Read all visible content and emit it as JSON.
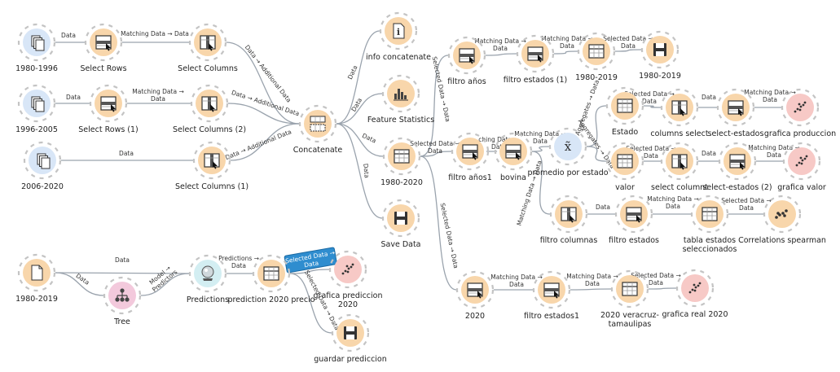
{
  "colors": {
    "data_node": "#f8d6ab",
    "file_node": "#d8e6f7",
    "save_node": "#f8d6ab",
    "viz_node": "#f7c9c6",
    "model_node": "#f3c9dc",
    "predict_node": "#d3eef2",
    "link": "#9aa3ad",
    "selected_link_label": "#2f8dcf"
  },
  "nodes": [
    {
      "id": "n_1980_1996",
      "label": "1980-1996",
      "icon": "files-icon",
      "kind": "file"
    },
    {
      "id": "n_select_rows",
      "label": "Select Rows",
      "icon": "select-rows-icon",
      "kind": "data"
    },
    {
      "id": "n_select_columns",
      "label": "Select Columns",
      "icon": "select-columns-icon",
      "kind": "data"
    },
    {
      "id": "n_1996_2005",
      "label": "1996-2005",
      "icon": "files-icon",
      "kind": "file"
    },
    {
      "id": "n_select_rows_1",
      "label": "Select Rows (1)",
      "icon": "select-rows-icon",
      "kind": "data"
    },
    {
      "id": "n_select_columns_2",
      "label": "Select Columns (2)",
      "icon": "select-columns-icon",
      "kind": "data"
    },
    {
      "id": "n_2006_2020",
      "label": "2006-2020",
      "icon": "files-icon",
      "kind": "file"
    },
    {
      "id": "n_select_columns_1",
      "label": "Select Columns (1)",
      "icon": "select-columns-icon",
      "kind": "data"
    },
    {
      "id": "n_concatenate",
      "label": "Concatenate",
      "icon": "concatenate-icon",
      "kind": "data"
    },
    {
      "id": "n_info_concatenate",
      "label": "info concatenate",
      "icon": "info-icon",
      "kind": "data"
    },
    {
      "id": "n_feature_statistics",
      "label": "Feature Statistics",
      "icon": "bar-stats-icon",
      "kind": "data"
    },
    {
      "id": "n_1980_2020",
      "label": "1980-2020",
      "icon": "table-icon",
      "kind": "data"
    },
    {
      "id": "n_save_data",
      "label": "Save Data",
      "icon": "save-icon",
      "kind": "data"
    },
    {
      "id": "n_filtro_anos",
      "label": "filtro años",
      "icon": "select-rows-icon",
      "kind": "data"
    },
    {
      "id": "n_filtro_estados_1",
      "label": "filtro estados (1)",
      "icon": "select-rows-icon",
      "kind": "data"
    },
    {
      "id": "n_1980_2019_tbl",
      "label": "1980-2019",
      "icon": "table-icon",
      "kind": "data"
    },
    {
      "id": "n_1980_2019_save",
      "label": "1980-2019",
      "icon": "save-icon",
      "kind": "data"
    },
    {
      "id": "n_filtro_anos1",
      "label": "filtro años1",
      "icon": "select-rows-icon",
      "kind": "data"
    },
    {
      "id": "n_bovina",
      "label": "bovina",
      "icon": "select-rows-icon",
      "kind": "data"
    },
    {
      "id": "n_promedio",
      "label": "promedio por estado",
      "icon": "group-by-icon",
      "kind": "aggregate"
    },
    {
      "id": "n_estado",
      "label": "Estado",
      "icon": "table-icon",
      "kind": "data"
    },
    {
      "id": "n_columns_select",
      "label": "columns select",
      "icon": "select-columns-icon",
      "kind": "data"
    },
    {
      "id": "n_select_estados",
      "label": "select-estados",
      "icon": "select-rows-icon",
      "kind": "data"
    },
    {
      "id": "n_grafica_produccion",
      "label": "grafica produccion",
      "icon": "scatter-plot-icon",
      "kind": "viz"
    },
    {
      "id": "n_valor",
      "label": "valor",
      "icon": "table-icon",
      "kind": "data"
    },
    {
      "id": "n_select_columnt",
      "label": "select columnt",
      "icon": "select-columns-icon",
      "kind": "data"
    },
    {
      "id": "n_select_estados_2",
      "label": "select-estados (2)",
      "icon": "select-rows-icon",
      "kind": "data"
    },
    {
      "id": "n_grafica_valor",
      "label": "grafica valor",
      "icon": "scatter-plot-icon",
      "kind": "viz"
    },
    {
      "id": "n_filtro_columnas",
      "label": "filtro columnas",
      "icon": "select-columns-icon",
      "kind": "data"
    },
    {
      "id": "n_filtro_estados",
      "label": "filtro estados",
      "icon": "select-rows-icon",
      "kind": "data"
    },
    {
      "id": "n_tabla_estados",
      "label": "tabla estados\nseleccionados",
      "icon": "table-icon",
      "kind": "data"
    },
    {
      "id": "n_correlations",
      "label": "Correlations spearman",
      "icon": "correlations-icon",
      "kind": "data"
    },
    {
      "id": "n_2020",
      "label": "2020",
      "icon": "select-rows-icon",
      "kind": "data"
    },
    {
      "id": "n_filtro_estados1",
      "label": "filtro estados1",
      "icon": "select-rows-icon",
      "kind": "data"
    },
    {
      "id": "n_2020_veracruz",
      "label": "2020 veracruz-\ntamaulipas",
      "icon": "table-icon",
      "kind": "data"
    },
    {
      "id": "n_grafica_real_2020",
      "label": "grafica real 2020",
      "icon": "scatter-plot-icon",
      "kind": "viz"
    },
    {
      "id": "n_1980_2019_file",
      "label": "1980-2019",
      "icon": "file-icon",
      "kind": "data"
    },
    {
      "id": "n_tree",
      "label": "Tree",
      "icon": "tree-icon",
      "kind": "model"
    },
    {
      "id": "n_predictions",
      "label": "Predictions",
      "icon": "predictions-icon",
      "kind": "predict"
    },
    {
      "id": "n_prediction_2020",
      "label": "prediction 2020 precio",
      "icon": "table-icon",
      "kind": "data"
    },
    {
      "id": "n_grafica_prediccion",
      "label": "grafica prediccion\n2020",
      "icon": "scatter-plot-icon",
      "kind": "viz"
    },
    {
      "id": "n_guardar_prediccion",
      "label": "guardar prediccion",
      "icon": "save-icon",
      "kind": "data"
    }
  ],
  "links": [
    {
      "from": "n_1980_1996",
      "to": "n_select_rows",
      "label": "Data"
    },
    {
      "from": "n_select_rows",
      "to": "n_select_columns",
      "label": "Matching Data → Data"
    },
    {
      "from": "n_select_columns",
      "to": "n_concatenate",
      "label": "Data → Additional Data"
    },
    {
      "from": "n_1996_2005",
      "to": "n_select_rows_1",
      "label": "Data"
    },
    {
      "from": "n_select_rows_1",
      "to": "n_select_columns_2",
      "label": "Matching Data →\nData"
    },
    {
      "from": "n_select_columns_2",
      "to": "n_concatenate",
      "label": "Data → Additional Data"
    },
    {
      "from": "n_2006_2020",
      "to": "n_select_columns_1",
      "label": "Data"
    },
    {
      "from": "n_select_columns_1",
      "to": "n_concatenate",
      "label": "Data → Additional Data"
    },
    {
      "from": "n_concatenate",
      "to": "n_info_concatenate",
      "label": "Data"
    },
    {
      "from": "n_concatenate",
      "to": "n_feature_statistics",
      "label": "Data"
    },
    {
      "from": "n_concatenate",
      "to": "n_1980_2020",
      "label": "Data"
    },
    {
      "from": "n_concatenate",
      "to": "n_save_data",
      "label": "Data"
    },
    {
      "from": "n_1980_2020",
      "to": "n_filtro_anos",
      "label": "Selected Data → Data"
    },
    {
      "from": "n_filtro_anos",
      "to": "n_filtro_estados_1",
      "label": "Matching Data →\nData"
    },
    {
      "from": "n_filtro_estados_1",
      "to": "n_1980_2019_tbl",
      "label": "Matching Data →\nData"
    },
    {
      "from": "n_1980_2019_tbl",
      "to": "n_1980_2019_save",
      "label": "Selected Data →\nData"
    },
    {
      "from": "n_1980_2020",
      "to": "n_filtro_anos1",
      "label": "Selected Data →\nData"
    },
    {
      "from": "n_filtro_anos1",
      "to": "n_bovina",
      "label": "ching Data →\nData"
    },
    {
      "from": "n_bovina",
      "to": "n_promedio",
      "label": "Matching Data →\nData"
    },
    {
      "from": "n_promedio",
      "to": "n_estado",
      "label": "Aggregates → Data"
    },
    {
      "from": "n_estado",
      "to": "n_columns_select",
      "label": "Selected Data →\nData"
    },
    {
      "from": "n_columns_select",
      "to": "n_select_estados",
      "label": "Data"
    },
    {
      "from": "n_select_estados",
      "to": "n_grafica_produccion",
      "label": "Matching Data →\nData"
    },
    {
      "from": "n_promedio",
      "to": "n_valor",
      "label": "Aggregates → Data"
    },
    {
      "from": "n_valor",
      "to": "n_select_columnt",
      "label": "Selected Data →\nData"
    },
    {
      "from": "n_select_columnt",
      "to": "n_select_estados_2",
      "label": "Data"
    },
    {
      "from": "n_select_estados_2",
      "to": "n_grafica_valor",
      "label": "Matching Data →\nData"
    },
    {
      "from": "n_bovina",
      "to": "n_filtro_columnas",
      "label": "Matching Data → Data"
    },
    {
      "from": "n_filtro_columnas",
      "to": "n_filtro_estados",
      "label": "Data"
    },
    {
      "from": "n_filtro_estados",
      "to": "n_tabla_estados",
      "label": "Matching Data →\nData"
    },
    {
      "from": "n_tabla_estados",
      "to": "n_correlations",
      "label": "Selected Data →\nData"
    },
    {
      "from": "n_1980_2020",
      "to": "n_2020",
      "label": "Selected Data → Data"
    },
    {
      "from": "n_2020",
      "to": "n_filtro_estados1",
      "label": "Matching Data →\nData"
    },
    {
      "from": "n_filtro_estados1",
      "to": "n_2020_veracruz",
      "label": "Matching Data →\nData"
    },
    {
      "from": "n_2020_veracruz",
      "to": "n_grafica_real_2020",
      "label": "Selected Data →\nData"
    },
    {
      "from": "n_1980_2019_file",
      "to": "n_predictions",
      "label": "Data"
    },
    {
      "from": "n_1980_2019_file",
      "to": "n_tree",
      "label": "Data"
    },
    {
      "from": "n_tree",
      "to": "n_predictions",
      "label": "Model →\nPredictors"
    },
    {
      "from": "n_predictions",
      "to": "n_prediction_2020",
      "label": "Predictions →\nData"
    },
    {
      "from": "n_prediction_2020",
      "to": "n_grafica_prediccion",
      "label": "Selected Data →\nData",
      "selected": true
    },
    {
      "from": "n_prediction_2020",
      "to": "n_guardar_prediccion",
      "label": "Selected Data → Data"
    }
  ]
}
